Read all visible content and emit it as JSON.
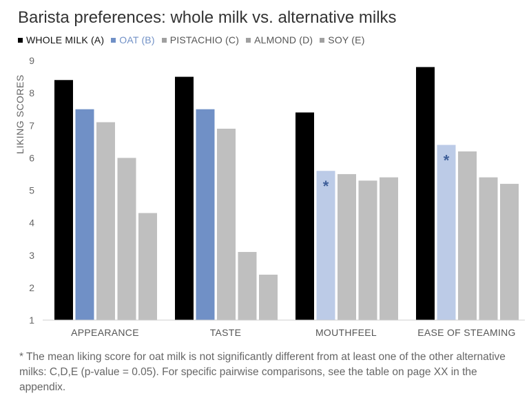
{
  "chart_data": {
    "type": "bar",
    "title": "Barista preferences: whole milk vs. alternative milks",
    "ylabel": "LIKING SCORES",
    "xlabel": "",
    "ylim": [
      1,
      9
    ],
    "yticks": [
      1,
      2,
      3,
      4,
      5,
      6,
      7,
      8,
      9
    ],
    "grid": false,
    "legend_position": "top-left",
    "categories": [
      "APPEARANCE",
      "TASTE",
      "MOUTHFEEL",
      "EASE OF STEAMING"
    ],
    "series": [
      {
        "name": "WHOLE MILK (A)",
        "color": "#000000",
        "values": [
          8.4,
          8.5,
          7.4,
          8.8
        ]
      },
      {
        "name": "OAT (B)",
        "color": "#7090c6",
        "values": [
          7.5,
          7.5,
          5.6,
          6.4
        ],
        "highlight_color": "#bccbe7",
        "asterisk": [
          false,
          false,
          true,
          true
        ]
      },
      {
        "name": "PISTACHIO (C)",
        "color": "#bfbfbf",
        "values": [
          7.1,
          6.9,
          5.5,
          6.2
        ]
      },
      {
        "name": "ALMOND (D)",
        "color": "#bfbfbf",
        "values": [
          6.0,
          3.1,
          5.3,
          5.4
        ]
      },
      {
        "name": "SOY (E)",
        "color": "#bfbfbf",
        "values": [
          4.3,
          2.4,
          5.4,
          5.2
        ]
      }
    ],
    "annotation_symbol": "*",
    "footnote": "* The mean liking score for oat milk is not significantly different from at least one of the other alternative milks: C,D,E (p-value = 0.05). For specific pairwise comparisons, see the table on page XX in the appendix."
  }
}
